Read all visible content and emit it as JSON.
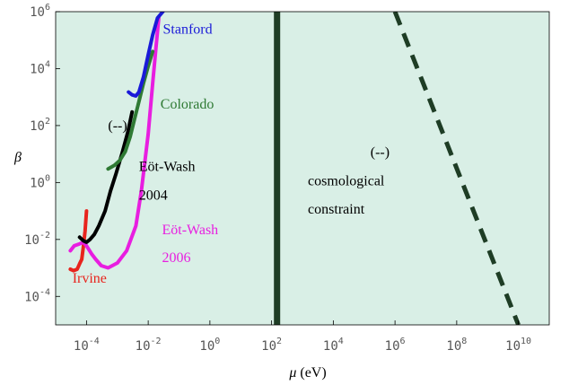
{
  "chart_data": {
    "type": "line",
    "xlabel": "μ (eV)",
    "ylabel": "β",
    "xscale": "log",
    "yscale": "log",
    "xlim": [
      1e-05,
      100000000000.0
    ],
    "ylim": [
      1e-05,
      1000000.0
    ],
    "x_ticks": [
      {
        "value": 0.0001,
        "base": "10",
        "exp": "-4"
      },
      {
        "value": 0.01,
        "base": "10",
        "exp": "-2"
      },
      {
        "value": 1.0,
        "base": "10",
        "exp": "0"
      },
      {
        "value": 100.0,
        "base": "10",
        "exp": "2"
      },
      {
        "value": 10000.0,
        "base": "10",
        "exp": "4"
      },
      {
        "value": 1000000.0,
        "base": "10",
        "exp": "6"
      },
      {
        "value": 100000000.0,
        "base": "10",
        "exp": "8"
      },
      {
        "value": 10000000000.0,
        "base": "10",
        "exp": "10"
      }
    ],
    "y_ticks": [
      {
        "value": 0.0001,
        "base": "10",
        "exp": "-4"
      },
      {
        "value": 0.01,
        "base": "10",
        "exp": "-2"
      },
      {
        "value": 1.0,
        "base": "10",
        "exp": "0"
      },
      {
        "value": 100.0,
        "base": "10",
        "exp": "2"
      },
      {
        "value": 10000.0,
        "base": "10",
        "exp": "4"
      },
      {
        "value": 1000000.0,
        "base": "10",
        "exp": "6"
      }
    ],
    "excluded_regions": [
      {
        "label": "(--)",
        "x_from": 1e-05,
        "x_to": 150,
        "color": "#d9efe6"
      },
      {
        "label": "(--)",
        "x_from": 150,
        "x_to": 100000000000.0,
        "color": "#d9efe6"
      }
    ],
    "series": [
      {
        "name": "Irvine",
        "color": "#e8241d",
        "style": "solid",
        "x": [
          3e-05,
          3.8e-05,
          5e-05,
          6e-05,
          7e-05,
          8e-05,
          9e-05,
          0.0001
        ],
        "y": [
          0.0009,
          0.0008,
          0.0009,
          0.0014,
          0.002,
          0.006,
          0.02,
          0.1
        ]
      },
      {
        "name": "Eöt-Wash 2006",
        "color": "#e81ee0",
        "style": "solid",
        "x": [
          3e-05,
          4e-05,
          6e-05,
          8e-05,
          0.0001,
          0.00015,
          0.0002,
          0.0003,
          0.0005,
          0.001,
          0.002,
          0.004,
          0.006,
          0.01,
          0.014,
          0.018,
          0.022
        ],
        "y": [
          0.004,
          0.006,
          0.007,
          0.008,
          0.006,
          0.003,
          0.002,
          0.0012,
          0.001,
          0.0015,
          0.004,
          0.03,
          0.5,
          50,
          3000,
          60000,
          600000
        ]
      },
      {
        "name": "Eöt-Wash 2004",
        "color": "#000000",
        "style": "solid",
        "x": [
          6e-05,
          8e-05,
          0.0001,
          0.00013,
          0.00018,
          0.00025,
          0.0004,
          0.0006,
          0.0009,
          0.0014,
          0.0022,
          0.003
        ],
        "y": [
          0.012,
          0.009,
          0.008,
          0.01,
          0.015,
          0.03,
          0.1,
          0.5,
          2,
          10,
          60,
          300
        ]
      },
      {
        "name": "Colorado",
        "color": "#2f7a34",
        "style": "solid",
        "x": [
          0.0005,
          0.0008,
          0.0012,
          0.0018,
          0.0026,
          0.0035,
          0.005,
          0.007,
          0.01,
          0.014
        ],
        "y": [
          3,
          4,
          6,
          12,
          40,
          150,
          700,
          3000,
          12000,
          40000
        ]
      },
      {
        "name": "Stanford",
        "color": "#1a1ad8",
        "style": "solid",
        "x": [
          0.0023,
          0.003,
          0.004,
          0.005,
          0.007,
          0.01,
          0.014,
          0.02,
          0.03
        ],
        "y": [
          1500,
          1200,
          1100,
          1500,
          5000,
          30000,
          150000,
          600000,
          1000000
        ]
      },
      {
        "name": "",
        "color": "#1e3d25",
        "style": "solid",
        "x": [
          150,
          150
        ],
        "y": [
          1e-05,
          1000000.0
        ]
      },
      {
        "name": "cosmological constraint",
        "color": "#1e3d25",
        "style": "dashed",
        "x": [
          1000000.0,
          10000000000.0
        ],
        "y": [
          1000000.0,
          1e-05
        ]
      }
    ],
    "annotations": [
      {
        "id": "irvine",
        "text": "Irvine",
        "x": 3.5e-05,
        "y": 0.0003,
        "color": "#e8241d"
      },
      {
        "id": "eotwash2006-line1",
        "text": "Eöt-Wash",
        "x": 0.028,
        "y": 0.015,
        "color": "#e81ee0"
      },
      {
        "id": "eotwash2006-line2",
        "text": "2006",
        "x": 0.028,
        "y": 0.0016,
        "color": "#e81ee0"
      },
      {
        "id": "eotwash2004-line1",
        "text": "Eöt-Wash",
        "x": 0.005,
        "y": 2.5,
        "color": "#000000"
      },
      {
        "id": "eotwash2004-line2",
        "text": "2004",
        "x": 0.005,
        "y": 0.25,
        "color": "#000000"
      },
      {
        "id": "colorado",
        "text": "Colorado",
        "x": 0.025,
        "y": 400,
        "color": "#2f7a34"
      },
      {
        "id": "stanford",
        "text": "Stanford",
        "x": 0.03,
        "y": 170000,
        "color": "#1a1ad8"
      },
      {
        "id": "region-left",
        "text": "(--)",
        "x": 0.0005,
        "y": 70,
        "color": "#000000"
      },
      {
        "id": "region-right",
        "text": "(--)",
        "x": 160000.0,
        "y": 8,
        "color": "#000000"
      },
      {
        "id": "cosmo-line1",
        "text": "cosmological",
        "x": 1500.0,
        "y": 0.8,
        "color": "#000000"
      },
      {
        "id": "cosmo-line2",
        "text": "constraint",
        "x": 1500.0,
        "y": 0.08,
        "color": "#000000"
      }
    ]
  }
}
